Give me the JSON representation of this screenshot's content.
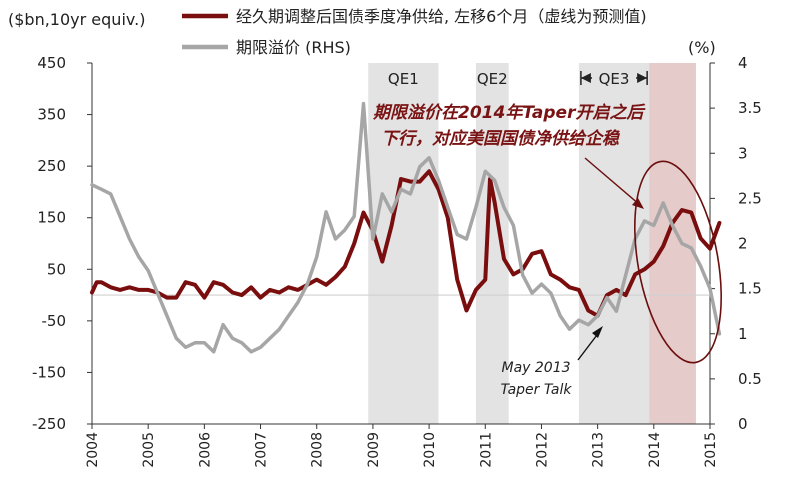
{
  "chart_data": {
    "type": "line",
    "x_range": [
      "2004-01",
      "2015-03"
    ],
    "x_ticks": [
      "2004",
      "2005",
      "2006",
      "2007",
      "2008",
      "2009",
      "2010",
      "2011",
      "2012",
      "2013",
      "2014",
      "2015"
    ],
    "left_axis": {
      "unit_label": "($bn,10yr equiv.)",
      "ylim": [
        -250,
        450
      ],
      "ticks": [
        "450",
        "350",
        "250",
        "150",
        "50",
        "-50",
        "-150",
        "-250"
      ]
    },
    "right_axis": {
      "unit_label": "(%)",
      "ylim": [
        0,
        4
      ],
      "ticks": [
        "4",
        "3.5",
        "3",
        "2.5",
        "2",
        "1.5",
        "1",
        "0.5",
        "0"
      ]
    },
    "grid": false,
    "zero_line": 0,
    "legend": {
      "placement": "top",
      "items": [
        {
          "label": "经久期调整后国债季度净供给, 左移6个月（虚线为预测值)",
          "color": "#7a0d0d"
        },
        {
          "label": "期限溢价 (RHS)",
          "color": "#a6a6a6"
        }
      ]
    },
    "shaded_periods": [
      {
        "label": "QE1",
        "start": "2008-12",
        "end": "2010-03",
        "color": "#e3e3e3"
      },
      {
        "label": "QE2",
        "start": "2010-11",
        "end": "2011-06",
        "color": "#e3e3e3"
      },
      {
        "label": "QE3",
        "start": "2012-09",
        "end": "2013-12",
        "color": "#e3e3e3"
      },
      {
        "label": "",
        "start": "2013-12",
        "end": "2014-10",
        "color": "#e6cbcb"
      }
    ],
    "series": [
      {
        "name": "经久期调整后国债季度净供给, 左移6个月（虚线为预测值)",
        "axis": "left",
        "color": "#7a0d0d",
        "points": [
          [
            "2004-01",
            5
          ],
          [
            "2004-02",
            25
          ],
          [
            "2004-03",
            25
          ],
          [
            "2004-05",
            15
          ],
          [
            "2004-07",
            10
          ],
          [
            "2004-09",
            15
          ],
          [
            "2004-11",
            10
          ],
          [
            "2005-01",
            10
          ],
          [
            "2005-03",
            5
          ],
          [
            "2005-05",
            -5
          ],
          [
            "2005-07",
            -5
          ],
          [
            "2005-09",
            25
          ],
          [
            "2005-11",
            20
          ],
          [
            "2006-01",
            -5
          ],
          [
            "2006-03",
            25
          ],
          [
            "2006-05",
            20
          ],
          [
            "2006-07",
            5
          ],
          [
            "2006-09",
            0
          ],
          [
            "2006-11",
            15
          ],
          [
            "2007-01",
            -5
          ],
          [
            "2007-03",
            10
          ],
          [
            "2007-05",
            5
          ],
          [
            "2007-07",
            15
          ],
          [
            "2007-09",
            10
          ],
          [
            "2007-11",
            20
          ],
          [
            "2008-01",
            30
          ],
          [
            "2008-03",
            20
          ],
          [
            "2008-05",
            35
          ],
          [
            "2008-07",
            55
          ],
          [
            "2008-09",
            100
          ],
          [
            "2008-11",
            160
          ],
          [
            "2009-01",
            125
          ],
          [
            "2009-03",
            65
          ],
          [
            "2009-05",
            135
          ],
          [
            "2009-07",
            225
          ],
          [
            "2009-09",
            220
          ],
          [
            "2009-11",
            220
          ],
          [
            "2010-01",
            240
          ],
          [
            "2010-03",
            205
          ],
          [
            "2010-05",
            150
          ],
          [
            "2010-07",
            30
          ],
          [
            "2010-09",
            -30
          ],
          [
            "2010-11",
            10
          ],
          [
            "2011-01",
            30
          ],
          [
            "2011-02",
            225
          ],
          [
            "2011-03",
            180
          ],
          [
            "2011-05",
            70
          ],
          [
            "2011-07",
            40
          ],
          [
            "2011-09",
            50
          ],
          [
            "2011-11",
            80
          ],
          [
            "2012-01",
            85
          ],
          [
            "2012-03",
            40
          ],
          [
            "2012-05",
            30
          ],
          [
            "2012-07",
            15
          ],
          [
            "2012-09",
            10
          ],
          [
            "2012-11",
            -30
          ],
          [
            "2013-01",
            -40
          ],
          [
            "2013-03",
            0
          ],
          [
            "2013-05",
            10
          ],
          [
            "2013-07",
            0
          ],
          [
            "2013-09",
            40
          ],
          [
            "2013-11",
            50
          ],
          [
            "2014-01",
            65
          ],
          [
            "2014-03",
            95
          ],
          [
            "2014-05",
            140
          ],
          [
            "2014-07",
            165
          ],
          [
            "2014-09",
            160
          ],
          [
            "2014-11",
            110
          ],
          [
            "2015-01",
            90
          ],
          [
            "2015-03",
            140
          ]
        ]
      },
      {
        "name": "期限溢价 (RHS)",
        "axis": "right",
        "color": "#a6a6a6",
        "points": [
          [
            "2004-01",
            2.65
          ],
          [
            "2004-03",
            2.6
          ],
          [
            "2004-05",
            2.55
          ],
          [
            "2004-07",
            2.3
          ],
          [
            "2004-09",
            2.05
          ],
          [
            "2004-11",
            1.85
          ],
          [
            "2005-01",
            1.7
          ],
          [
            "2005-03",
            1.45
          ],
          [
            "2005-05",
            1.2
          ],
          [
            "2005-07",
            0.95
          ],
          [
            "2005-09",
            0.85
          ],
          [
            "2005-11",
            0.9
          ],
          [
            "2006-01",
            0.9
          ],
          [
            "2006-03",
            0.8
          ],
          [
            "2006-05",
            1.1
          ],
          [
            "2006-07",
            0.95
          ],
          [
            "2006-09",
            0.9
          ],
          [
            "2006-11",
            0.8
          ],
          [
            "2007-01",
            0.85
          ],
          [
            "2007-03",
            0.95
          ],
          [
            "2007-05",
            1.05
          ],
          [
            "2007-07",
            1.2
          ],
          [
            "2007-09",
            1.35
          ],
          [
            "2007-11",
            1.55
          ],
          [
            "2008-01",
            1.85
          ],
          [
            "2008-03",
            2.35
          ],
          [
            "2008-05",
            2.05
          ],
          [
            "2008-07",
            2.15
          ],
          [
            "2008-09",
            2.3
          ],
          [
            "2008-11",
            3.55
          ],
          [
            "2009-01",
            2.05
          ],
          [
            "2009-03",
            2.55
          ],
          [
            "2009-05",
            2.35
          ],
          [
            "2009-07",
            2.6
          ],
          [
            "2009-09",
            2.55
          ],
          [
            "2009-11",
            2.85
          ],
          [
            "2010-01",
            2.95
          ],
          [
            "2010-03",
            2.7
          ],
          [
            "2010-05",
            2.4
          ],
          [
            "2010-07",
            2.1
          ],
          [
            "2010-09",
            2.05
          ],
          [
            "2010-11",
            2.4
          ],
          [
            "2011-01",
            2.8
          ],
          [
            "2011-03",
            2.7
          ],
          [
            "2011-05",
            2.4
          ],
          [
            "2011-07",
            2.2
          ],
          [
            "2011-09",
            1.65
          ],
          [
            "2011-11",
            1.45
          ],
          [
            "2012-01",
            1.55
          ],
          [
            "2012-03",
            1.45
          ],
          [
            "2012-05",
            1.2
          ],
          [
            "2012-07",
            1.05
          ],
          [
            "2012-09",
            1.15
          ],
          [
            "2012-11",
            1.1
          ],
          [
            "2013-01",
            1.2
          ],
          [
            "2013-03",
            1.4
          ],
          [
            "2013-05",
            1.25
          ],
          [
            "2013-07",
            1.65
          ],
          [
            "2013-09",
            2.05
          ],
          [
            "2013-11",
            2.25
          ],
          [
            "2014-01",
            2.2
          ],
          [
            "2014-03",
            2.45
          ],
          [
            "2014-05",
            2.2
          ],
          [
            "2014-07",
            2.0
          ],
          [
            "2014-09",
            1.95
          ],
          [
            "2014-11",
            1.75
          ],
          [
            "2015-01",
            1.5
          ],
          [
            "2015-03",
            1.0
          ]
        ]
      }
    ],
    "annotations": [
      {
        "id": "tp2014",
        "lines": [
          "期限溢价在2014年Taper开启之后",
          "下行，对应美国国债净供给企稳"
        ]
      },
      {
        "id": "may2013",
        "lines": [
          "May 2013",
          "Taper Talk"
        ]
      }
    ]
  }
}
